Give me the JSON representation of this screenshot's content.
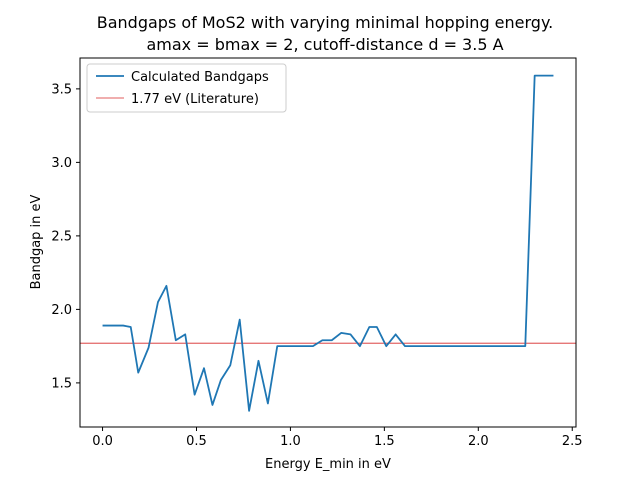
{
  "chart_data": {
    "type": "line",
    "title_line1": "Bandgaps of MoS2 with varying minimal hopping energy.",
    "title_line2": "amax = bmax = 2, cutoff-distance d = 3.5 A",
    "xlabel": "Energy E_min in eV",
    "ylabel": "Bandgap in eV",
    "xlim": [
      -0.12,
      2.52
    ],
    "ylim": [
      1.2,
      3.71
    ],
    "xticks": [
      0.0,
      0.5,
      1.0,
      1.5,
      2.0,
      2.5
    ],
    "xtick_labels": [
      "0.0",
      "0.5",
      "1.0",
      "1.5",
      "2.0",
      "2.5"
    ],
    "yticks": [
      1.5,
      2.0,
      2.5,
      3.0,
      3.5
    ],
    "ytick_labels": [
      "1.5",
      "2.0",
      "2.5",
      "3.0",
      "3.5"
    ],
    "legend_position": "top-left",
    "series": [
      {
        "name": "Calculated Bandgaps",
        "color": "#1f77b4",
        "x": [
          0.0,
          0.04,
          0.08,
          0.11,
          0.15,
          0.19,
          0.245,
          0.295,
          0.34,
          0.39,
          0.44,
          0.49,
          0.54,
          0.585,
          0.63,
          0.68,
          0.73,
          0.78,
          0.83,
          0.88,
          0.93,
          0.98,
          1.03,
          1.08,
          1.12,
          1.17,
          1.22,
          1.27,
          1.32,
          1.37,
          1.42,
          1.46,
          1.51,
          1.56,
          1.61,
          1.66,
          1.71,
          1.76,
          1.81,
          1.86,
          1.9,
          1.95,
          2.0,
          2.05,
          2.1,
          2.15,
          2.2,
          2.25,
          2.3,
          2.35,
          2.4
        ],
        "y": [
          1.89,
          1.89,
          1.89,
          1.89,
          1.88,
          1.57,
          1.74,
          2.05,
          2.16,
          1.79,
          1.83,
          1.42,
          1.6,
          1.35,
          1.52,
          1.62,
          1.93,
          1.31,
          1.65,
          1.36,
          1.75,
          1.75,
          1.75,
          1.75,
          1.75,
          1.79,
          1.79,
          1.84,
          1.83,
          1.75,
          1.88,
          1.88,
          1.75,
          1.83,
          1.75,
          1.75,
          1.75,
          1.75,
          1.75,
          1.75,
          1.75,
          1.75,
          1.75,
          1.75,
          1.75,
          1.75,
          1.75,
          1.75,
          3.59,
          3.59,
          3.59
        ]
      }
    ],
    "reference_line": {
      "name": "1.77 eV (Literature)",
      "value": 1.77,
      "color": "#d62728"
    }
  }
}
